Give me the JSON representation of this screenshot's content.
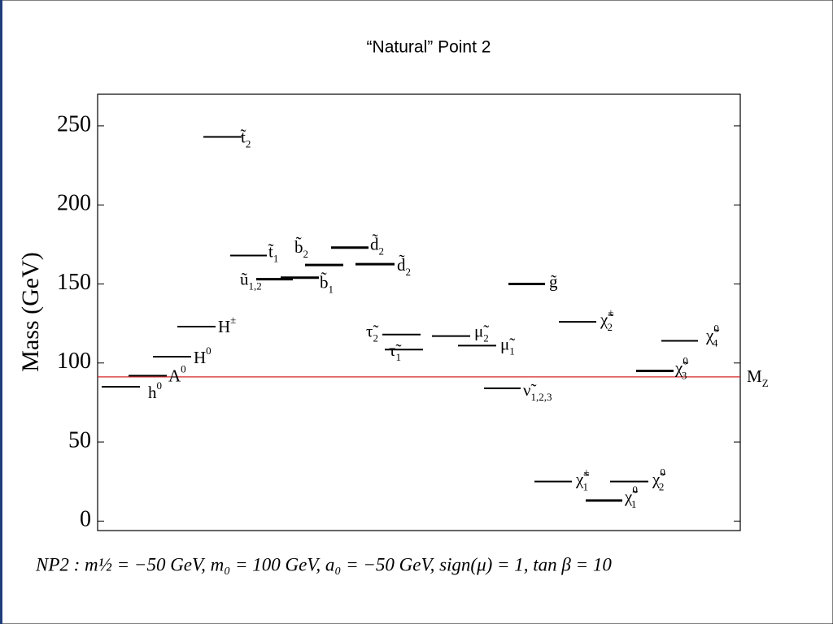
{
  "chart_data": {
    "type": "spectrum",
    "title": "“Natural” Point 2",
    "ylabel": "Mass (GeV)",
    "ylim": [
      -6,
      270
    ],
    "yticks": [
      0,
      50,
      100,
      150,
      200,
      250
    ],
    "levels": [
      {
        "label": "h",
        "sup": "0",
        "value": 85
      },
      {
        "label": "A",
        "sup": "0",
        "value": 92
      },
      {
        "label": "H",
        "sup": "0",
        "value": 104
      },
      {
        "label": "H",
        "sup": "±",
        "value": 123
      },
      {
        "label": "t̃",
        "sub": "2",
        "value": 243
      },
      {
        "label": "t̃",
        "sub": "1",
        "value": 168
      },
      {
        "label": "ũ",
        "sub": "1,2",
        "value": 153
      },
      {
        "label": "b̃",
        "sub": "2",
        "value": 162
      },
      {
        "label": "b̃",
        "sub": "1",
        "value": 154
      },
      {
        "label": "d̃",
        "sub": "2",
        "value": 173
      },
      {
        "label": "d̃",
        "sub": "2",
        "value": 162.5
      },
      {
        "label": "τ̃",
        "sub": "2",
        "value": 118
      },
      {
        "label": "τ̃",
        "sub": "1",
        "value": 108.5
      },
      {
        "label": "μ̃",
        "sub": "2",
        "value": 117
      },
      {
        "label": "μ̃",
        "sub": "1",
        "value": 111
      },
      {
        "label": "ν̃",
        "sub": "1,2,3",
        "value": 84
      },
      {
        "label": "g̃",
        "value": 150
      },
      {
        "label": "χ̃",
        "sub": "2",
        "sup": "±",
        "value": 126
      },
      {
        "label": "χ̃",
        "sub": "4",
        "sup": "0",
        "value": 114
      },
      {
        "label": "χ̃",
        "sub": "3",
        "sup": "0",
        "value": 95
      },
      {
        "label": "χ̃",
        "sub": "1",
        "sup": "±",
        "value": 25
      },
      {
        "label": "χ̃",
        "sub": "2",
        "sup": "0",
        "value": 25
      },
      {
        "label": "χ̃",
        "sub": "1",
        "sup": "0",
        "value": 13
      }
    ],
    "reference": {
      "label": "M",
      "sub": "Z",
      "value": 91.2,
      "color": "#d62728"
    },
    "footnote": "NP2 :    m½ = −50 GeV,  m₀ = 100 GeV,  a₀ = −50 GeV,  sign(μ) = 1,   tan β = 10"
  }
}
